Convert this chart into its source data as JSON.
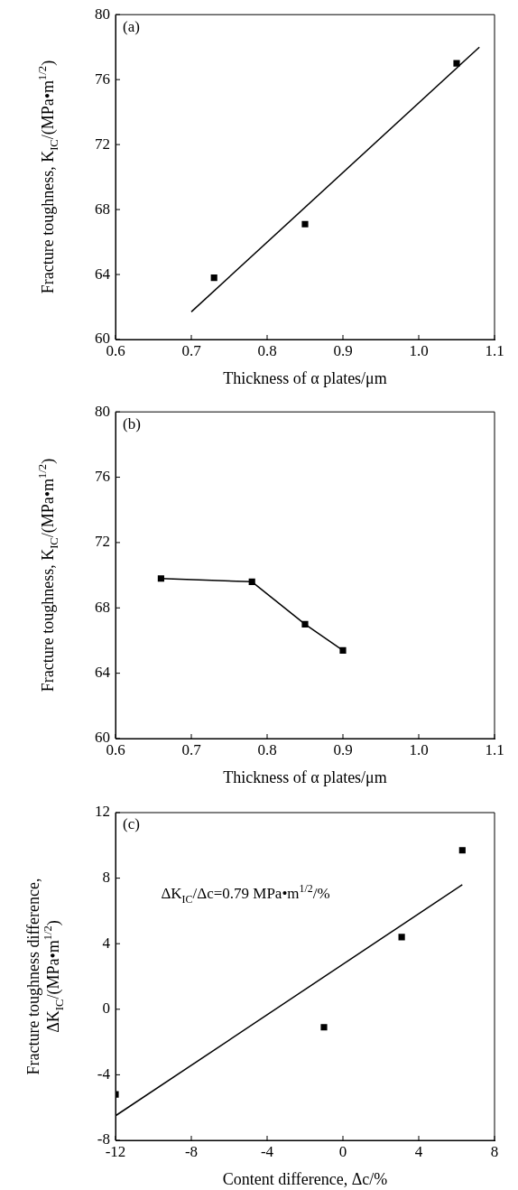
{
  "chart_data": [
    {
      "type": "scatter",
      "title": "(a)",
      "xlabel": "Thickness of α plates/μm",
      "ylabel": "Fracture toughness, K$_{IC}$/(MPa•m$^{1/2}$)",
      "marker": "square",
      "grid": false,
      "legend": false,
      "xlim": [
        0.6,
        1.1
      ],
      "xticks": [
        0.6,
        0.7,
        0.8,
        0.9,
        {
          "value": 1,
          "label": "1.0"
        },
        1.1
      ],
      "ylim": [
        60,
        80
      ],
      "yticks": [
        60,
        64,
        68,
        72,
        76,
        80
      ],
      "series": [
        {
          "color": "#000000",
          "x": [
            0.73,
            0.85,
            1.05
          ],
          "values": [
            63.8,
            67.1,
            77.0
          ]
        },
        {
          "type": "line",
          "color": "#000000",
          "marker": "none",
          "x": [
            0.7,
            1.08
          ],
          "values": [
            61.7,
            78.0
          ]
        }
      ]
    },
    {
      "type": "line",
      "title": "(b)",
      "xlabel": "Thickness of α plates/μm",
      "ylabel": "Fracture toughness, K$_{IC}$/(MPa•m$^{1/2}$)",
      "marker": "square",
      "grid": false,
      "legend": false,
      "xlim": [
        0.6,
        1.1
      ],
      "xticks": [
        0.6,
        0.7,
        0.8,
        0.9,
        {
          "value": 1,
          "label": "1.0"
        },
        1.1
      ],
      "ylim": [
        60,
        80
      ],
      "yticks": [
        60,
        64,
        68,
        72,
        76,
        80
      ],
      "series": [
        {
          "color": "#000000",
          "x": [
            0.66,
            0.78,
            0.85,
            0.9
          ],
          "values": [
            69.8,
            69.6,
            67.0,
            65.4
          ]
        }
      ]
    },
    {
      "type": "scatter",
      "title": "(c)",
      "xlabel": "Content difference, Δc/%",
      "ylabel": "Fracture toughness difference,\nΔK$_{IC}$/(MPa•m$^{1/2}$)",
      "marker": "square",
      "grid": false,
      "legend": false,
      "annotations": [
        "ΔK$_{IC}$/Δc=0.79 MPa•m$^{1/2}$/%"
      ],
      "xlim": [
        -12,
        8
      ],
      "xticks": [
        -12,
        -8,
        -4,
        0,
        4,
        8
      ],
      "ylim": [
        -8,
        12
      ],
      "yticks": [
        -8,
        -4,
        0,
        4,
        8,
        12
      ],
      "series": [
        {
          "color": "#000000",
          "x": [
            -12,
            -1,
            3.1,
            6.3
          ],
          "values": [
            -5.2,
            -1.1,
            4.4,
            9.7
          ]
        },
        {
          "type": "line",
          "color": "#000000",
          "marker": "none",
          "x": [
            -12,
            6.3
          ],
          "values": [
            -6.5,
            7.6
          ]
        }
      ]
    }
  ]
}
